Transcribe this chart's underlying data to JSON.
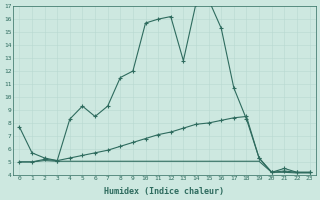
{
  "x": [
    0,
    1,
    2,
    3,
    4,
    5,
    6,
    7,
    8,
    9,
    10,
    11,
    12,
    13,
    14,
    15,
    16,
    17,
    18,
    19,
    20,
    21,
    22,
    23
  ],
  "main_y": [
    7.7,
    5.7,
    5.3,
    5.1,
    8.3,
    9.3,
    8.5,
    9.3,
    11.5,
    12.0,
    15.7,
    16.0,
    16.2,
    12.8,
    17.2,
    17.5,
    15.3,
    10.7,
    8.3,
    5.3,
    4.2,
    4.5,
    4.2,
    4.2
  ],
  "mid_y": [
    5.0,
    5.0,
    5.2,
    5.1,
    5.3,
    5.5,
    5.7,
    5.9,
    6.2,
    6.5,
    6.8,
    7.1,
    7.3,
    7.6,
    7.9,
    8.0,
    8.2,
    8.4,
    8.5,
    5.3,
    4.2,
    4.3,
    4.2,
    4.2
  ],
  "bot_y": [
    5.0,
    5.0,
    5.1,
    5.05,
    5.05,
    5.05,
    5.05,
    5.05,
    5.05,
    5.05,
    5.05,
    5.05,
    5.05,
    5.05,
    5.05,
    5.05,
    5.05,
    5.05,
    5.05,
    5.05,
    4.2,
    4.2,
    4.15,
    4.15
  ],
  "line_color": "#2e6b5e",
  "bg_color": "#cde8e0",
  "grid_color_major": "#b8d8d0",
  "grid_color_minor": "#c8e0d8",
  "xlabel": "Humidex (Indice chaleur)",
  "ylim": [
    4,
    17
  ],
  "xlim": [
    -0.5,
    23.5
  ],
  "yticks": [
    4,
    5,
    6,
    7,
    8,
    9,
    10,
    11,
    12,
    13,
    14,
    15,
    16,
    17
  ],
  "xticks": [
    0,
    1,
    2,
    3,
    4,
    5,
    6,
    7,
    8,
    9,
    10,
    11,
    12,
    13,
    14,
    15,
    16,
    17,
    18,
    19,
    20,
    21,
    22,
    23
  ]
}
